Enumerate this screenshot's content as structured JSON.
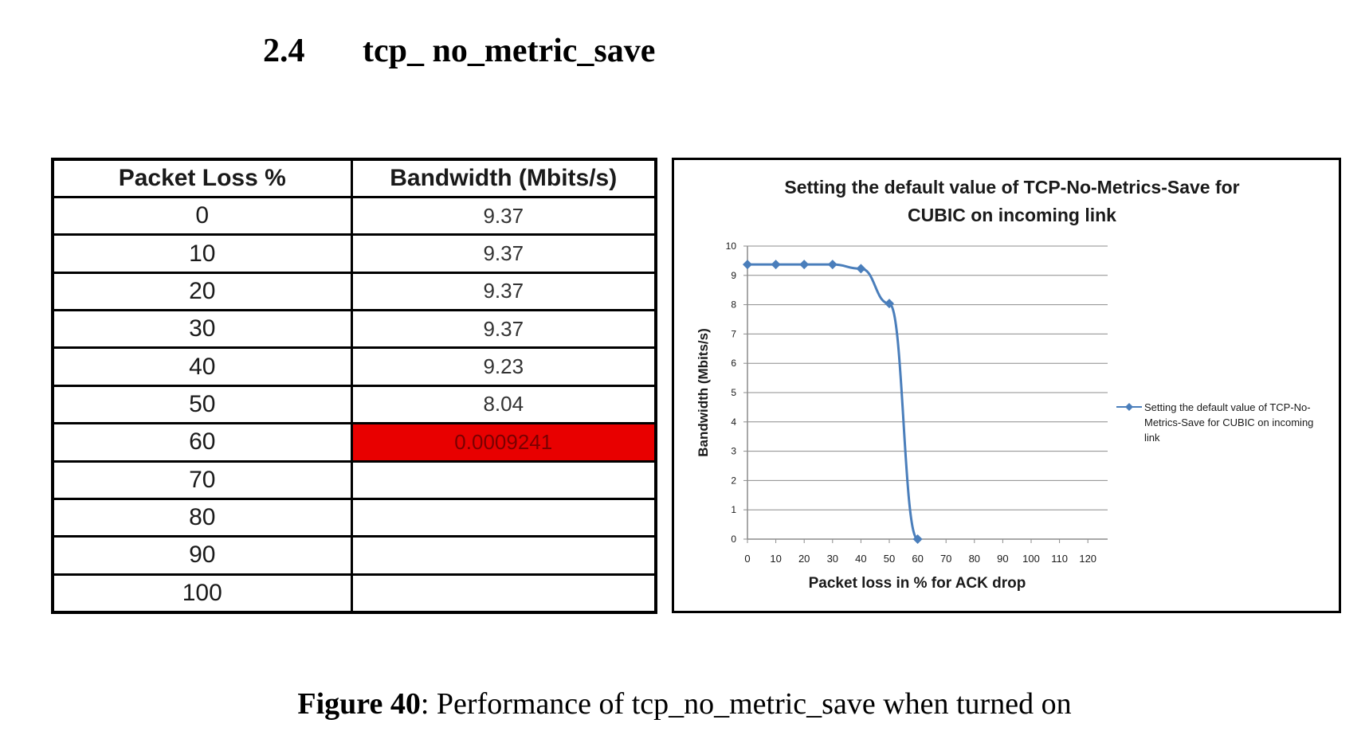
{
  "section": {
    "number": "2.4",
    "title": "tcp_ no_metric_save"
  },
  "table": {
    "headers": [
      "Packet Loss %",
      "Bandwidth (Mbits/s)"
    ],
    "rows": [
      {
        "loss": "0",
        "bandwidth": "9.37"
      },
      {
        "loss": "10",
        "bandwidth": "9.37"
      },
      {
        "loss": "20",
        "bandwidth": "9.37"
      },
      {
        "loss": "30",
        "bandwidth": "9.37"
      },
      {
        "loss": "40",
        "bandwidth": "9.23"
      },
      {
        "loss": "50",
        "bandwidth": "8.04"
      },
      {
        "loss": "60",
        "bandwidth": "0.0009241",
        "highlight": true
      },
      {
        "loss": "70",
        "bandwidth": ""
      },
      {
        "loss": "80",
        "bandwidth": ""
      },
      {
        "loss": "90",
        "bandwidth": ""
      },
      {
        "loss": "100",
        "bandwidth": ""
      }
    ],
    "highlight_color": "#e80000"
  },
  "chart_data": {
    "type": "line",
    "title": "Setting the default value of TCP-No-Metrics-Save for CUBIC on incoming link",
    "title_lines": [
      "Setting the default value of TCP-No-Metrics-Save for",
      "CUBIC on incoming link"
    ],
    "xlabel": "Packet loss in % for ACK drop",
    "ylabel": "Bandwidth (Mbits/s)",
    "xlim": [
      0,
      120
    ],
    "ylim": [
      0,
      10
    ],
    "xticks": [
      0,
      10,
      20,
      30,
      40,
      50,
      60,
      70,
      80,
      90,
      100,
      110,
      120
    ],
    "yticks": [
      0,
      1,
      2,
      3,
      4,
      5,
      6,
      7,
      8,
      9,
      10
    ],
    "grid": true,
    "legend_position": "right",
    "series": [
      {
        "name": "Setting the default value of TCP-No-Metrics-Save for CUBIC on incoming link",
        "legend_lines": [
          "Setting the default value of TCP-No-",
          "Metrics-Save for CUBIC on incoming",
          "link"
        ],
        "color": "#4a7ebb",
        "marker": "diamond",
        "x": [
          0,
          10,
          20,
          30,
          40,
          50,
          60
        ],
        "y": [
          9.37,
          9.37,
          9.37,
          9.37,
          9.23,
          8.04,
          0.0009241
        ]
      }
    ]
  },
  "caption": {
    "label": "Figure 40",
    "text": ": Performance  of tcp_no_metric_save  when turned  on"
  }
}
